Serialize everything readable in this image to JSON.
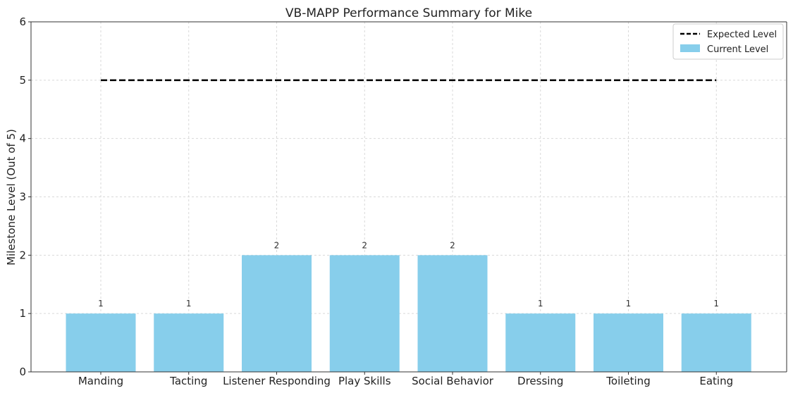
{
  "chart_data": {
    "type": "bar",
    "title": "VB-MAPP Performance Summary for Mike",
    "xlabel": "",
    "ylabel": "Milestone Level (Out of 5)",
    "categories": [
      "Manding",
      "Tacting",
      "Listener Responding",
      "Play Skills",
      "Social Behavior",
      "Dressing",
      "Toileting",
      "Eating"
    ],
    "series": [
      {
        "name": "Current Level",
        "type": "bar",
        "values": [
          1,
          1,
          2,
          2,
          2,
          1,
          1,
          1
        ],
        "color": "#87ceeb"
      },
      {
        "name": "Expected Level",
        "type": "line",
        "style": "dashed",
        "values": [
          5,
          5,
          5,
          5,
          5,
          5,
          5,
          5
        ],
        "color": "#000000"
      }
    ],
    "data_labels": [
      "1",
      "1",
      "2",
      "2",
      "2",
      "1",
      "1",
      "1"
    ],
    "ylim": [
      0,
      6
    ],
    "yticks": [
      0,
      1,
      2,
      3,
      4,
      5,
      6
    ],
    "grid": true,
    "legend": {
      "position": "top-right",
      "entries": [
        "Expected Level",
        "Current Level"
      ]
    }
  }
}
